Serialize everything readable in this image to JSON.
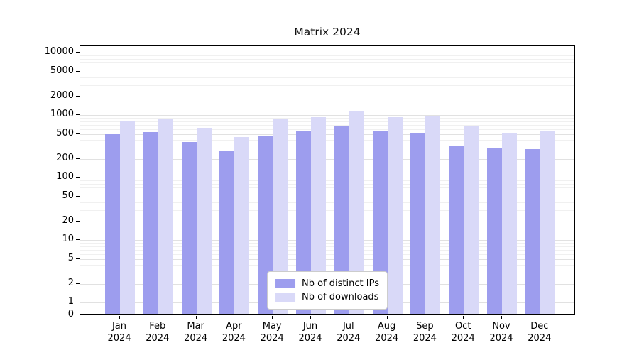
{
  "title": "Matrix 2024",
  "chart_data": {
    "type": "bar",
    "title": "Matrix 2024",
    "yscale": "symlog",
    "grid": true,
    "legend_position": "lower center",
    "ylim": [
      0,
      10000
    ],
    "y_ticks": [
      0,
      1,
      2,
      5,
      10,
      20,
      50,
      100,
      200,
      500,
      1000,
      2000,
      5000,
      10000
    ],
    "categories": [
      "Jan 2024",
      "Feb 2024",
      "Mar 2024",
      "Apr 2024",
      "May 2024",
      "Jun 2024",
      "Jul 2024",
      "Aug 2024",
      "Sep 2024",
      "Oct 2024",
      "Nov 2024",
      "Dec 2024"
    ],
    "series": [
      {
        "name": "Nb of distinct IPs",
        "color": "#9d9dee",
        "values": [
          500,
          540,
          370,
          265,
          460,
          550,
          680,
          555,
          505,
          320,
          300,
          285
        ]
      },
      {
        "name": "Nb of downloads",
        "color": "#d9d9f8",
        "values": [
          820,
          880,
          620,
          450,
          870,
          930,
          1150,
          920,
          950,
          660,
          525,
          560
        ]
      }
    ]
  }
}
